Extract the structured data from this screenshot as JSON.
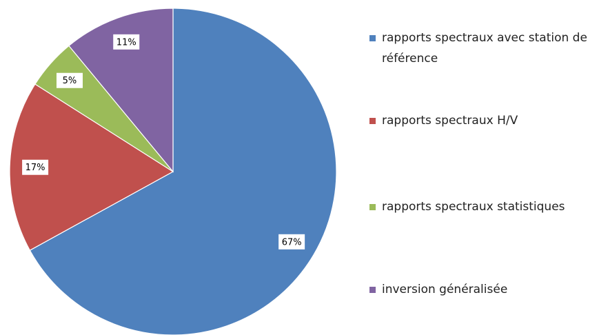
{
  "chart_data": {
    "type": "pie",
    "categories": [
      "rapports spectraux avec station de référence",
      "rapports spectraux H/V",
      "rapports spectraux statistiques",
      "inversion généralisée"
    ],
    "values": [
      67,
      17,
      5,
      11
    ],
    "value_labels": [
      "67%",
      "17%",
      "5%",
      "11%"
    ],
    "colors": [
      "#4f81bd",
      "#c0504d",
      "#9bbb59",
      "#8064a2"
    ],
    "legend": "right"
  }
}
